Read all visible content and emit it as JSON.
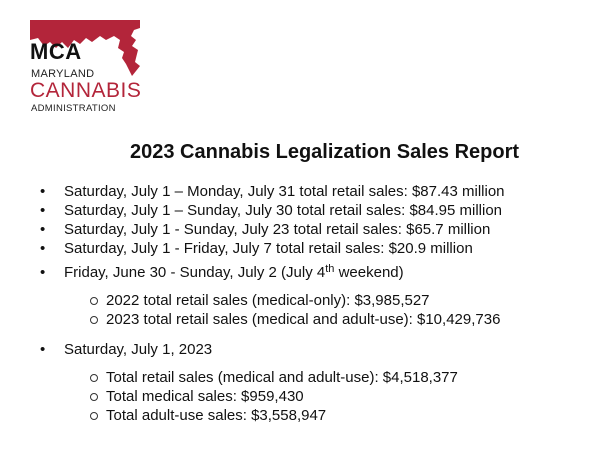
{
  "logo": {
    "abbr": "MCA",
    "line1": "MARYLAND",
    "line2": "CANNABIS",
    "line3": "ADMINISTRATION",
    "map_color": "#b3253a"
  },
  "title": "2023 Cannabis Legalization Sales Report",
  "bullets": [
    "Saturday, July 1 – Monday, July 31 total retail sales: $87.43 million",
    "Saturday, July 1 – Sunday, July 30 total retail sales: $84.95 million",
    "Saturday, July 1 - Sunday, July 23 total retail sales: $65.7 million",
    "Saturday, July 1 - Friday, July 7 total retail sales: $20.9 million"
  ],
  "weekend": {
    "before": "Friday, June 30 - Sunday, July 2 (July 4",
    "sup": "th",
    "after": " weekend)",
    "items": [
      "2022 total retail sales (medical-only): $3,985,527",
      "2023 total retail sales (medical and adult-use): $10,429,736"
    ]
  },
  "july1": {
    "heading": "Saturday, July 1, 2023",
    "items": [
      "Total retail sales (medical and adult-use): $4,518,377",
      "Total medical sales: $959,430",
      "Total adult-use sales: $3,558,947"
    ]
  }
}
